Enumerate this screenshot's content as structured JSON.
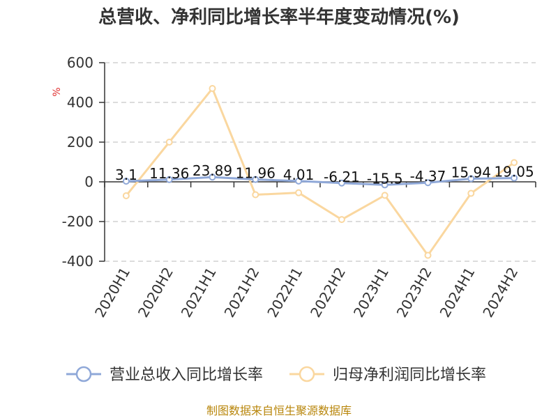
{
  "chart_data": {
    "type": "line",
    "title": "总营收、净利同比增长率半年度变动情况(%)",
    "ylabel": "%",
    "categories": [
      "2020H1",
      "2020H2",
      "2021H1",
      "2021H2",
      "2022H1",
      "2022H2",
      "2023H1",
      "2023H2",
      "2024H1",
      "2024H2"
    ],
    "ylim": [
      -400,
      600
    ],
    "yticks": [
      600,
      400,
      200,
      0,
      -200,
      -400
    ],
    "ytick_labels": [
      "600",
      "400",
      "200",
      "0",
      "-200",
      "-400"
    ],
    "grid": true,
    "legend_position": "bottom",
    "series": [
      {
        "name": "营业总收入同比增长率",
        "color": "#8fa8d8",
        "values": [
          3.1,
          11.36,
          23.89,
          11.96,
          4.01,
          -6.21,
          -15.5,
          -4.37,
          15.94,
          19.05
        ],
        "labels": [
          "3.1",
          "11.36",
          "23.89",
          "11.96",
          "4.01",
          "-6.21",
          "-15.5",
          "-4.37",
          "15.94",
          "19.05"
        ]
      },
      {
        "name": "归母净利润同比增长率",
        "color": "#fad79f",
        "values": [
          -70,
          200,
          470,
          -65,
          -55,
          -190,
          -68,
          -370,
          -58,
          97
        ]
      }
    ]
  },
  "footer": {
    "source": "制图数据来自恒生聚源数据库"
  }
}
